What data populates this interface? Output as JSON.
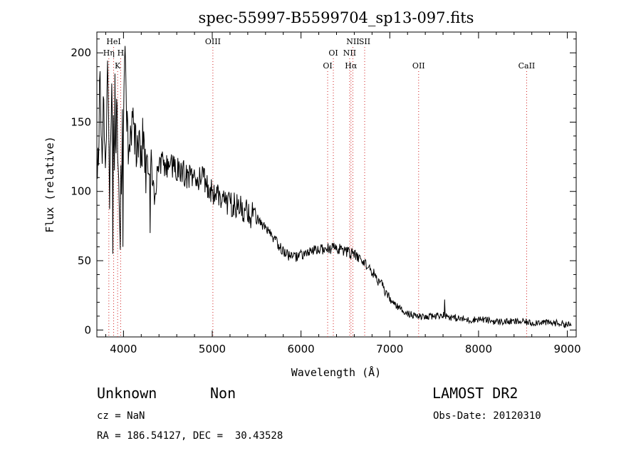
{
  "chart_data": {
    "type": "line",
    "title": "spec-55997-B5599704_sp13-097.fits",
    "xlabel": "Wavelength (Å)",
    "ylabel": "Flux (relative)",
    "xlim": [
      3700,
      9100
    ],
    "ylim": [
      -5,
      215
    ],
    "xticks": [
      4000,
      5000,
      6000,
      7000,
      8000,
      9000
    ],
    "yticks": [
      0,
      50,
      100,
      150,
      200
    ],
    "grid": false,
    "series": [
      {
        "name": "spectrum",
        "anchors": [
          [
            3700,
            120
          ],
          [
            3720,
            140
          ],
          [
            3740,
            175
          ],
          [
            3760,
            130
          ],
          [
            3780,
            165
          ],
          [
            3800,
            110
          ],
          [
            3820,
            195
          ],
          [
            3840,
            90
          ],
          [
            3860,
            150
          ],
          [
            3880,
            185
          ],
          [
            3900,
            95
          ],
          [
            3920,
            160
          ],
          [
            3940,
            120
          ],
          [
            3960,
            70
          ],
          [
            3980,
            130
          ],
          [
            4000,
            150
          ],
          [
            4020,
            195
          ],
          [
            4050,
            120
          ],
          [
            4100,
            145
          ],
          [
            4150,
            125
          ],
          [
            4200,
            140
          ],
          [
            4250,
            115
          ],
          [
            4300,
            130
          ],
          [
            4350,
            95
          ],
          [
            4400,
            125
          ],
          [
            4450,
            118
          ],
          [
            4500,
            120
          ],
          [
            4600,
            115
          ],
          [
            4700,
            112
          ],
          [
            4800,
            110
          ],
          [
            4900,
            108
          ],
          [
            5000,
            100
          ],
          [
            5100,
            95
          ],
          [
            5200,
            92
          ],
          [
            5300,
            88
          ],
          [
            5400,
            85
          ],
          [
            5500,
            80
          ],
          [
            5600,
            73
          ],
          [
            5700,
            65
          ],
          [
            5800,
            57
          ],
          [
            5900,
            52
          ],
          [
            6000,
            54
          ],
          [
            6100,
            56
          ],
          [
            6200,
            58
          ],
          [
            6300,
            59
          ],
          [
            6400,
            59
          ],
          [
            6500,
            57
          ],
          [
            6600,
            54
          ],
          [
            6700,
            50
          ],
          [
            6800,
            42
          ],
          [
            6900,
            33
          ],
          [
            7000,
            22
          ],
          [
            7100,
            16
          ],
          [
            7200,
            12
          ],
          [
            7300,
            10
          ],
          [
            7400,
            9
          ],
          [
            7500,
            10
          ],
          [
            7600,
            11
          ],
          [
            7700,
            9
          ],
          [
            7800,
            8
          ],
          [
            7900,
            7
          ],
          [
            8000,
            8
          ],
          [
            8100,
            7
          ],
          [
            8200,
            6
          ],
          [
            8300,
            6
          ],
          [
            8400,
            6
          ],
          [
            8500,
            6
          ],
          [
            8600,
            5
          ],
          [
            8700,
            6
          ],
          [
            8800,
            5
          ],
          [
            8900,
            5
          ],
          [
            9000,
            4
          ],
          [
            9050,
            3
          ]
        ],
        "spikes": [
          [
            3962,
            58
          ],
          [
            3995,
            60
          ],
          [
            3880,
            55
          ],
          [
            4020,
            205
          ],
          [
            3905,
            185
          ],
          [
            4300,
            70
          ],
          [
            7620,
            22
          ],
          [
            4050,
            150
          ]
        ]
      }
    ],
    "lines": [
      {
        "name": "HeI",
        "wavelength": 3889,
        "row": 1
      },
      {
        "name": "Hη",
        "wavelength": 3835,
        "row": 2
      },
      {
        "name": "H",
        "wavelength": 3968,
        "row": 2
      },
      {
        "name": "K",
        "wavelength": 3934,
        "row": 3
      },
      {
        "name": "OIII",
        "wavelength": 5007,
        "row": 1
      },
      {
        "name": "OI",
        "wavelength": 6364,
        "row": 2
      },
      {
        "name": "OI",
        "wavelength": 6300,
        "row": 3
      },
      {
        "name": "NII",
        "wavelength": 6584,
        "row": 1
      },
      {
        "name": "SII",
        "wavelength": 6717,
        "row": 1
      },
      {
        "name": "NII",
        "wavelength": 6548,
        "row": 2
      },
      {
        "name": "Hα",
        "wavelength": 6563,
        "row": 3
      },
      {
        "name": "OII",
        "wavelength": 7325,
        "row": 3
      },
      {
        "name": "CaII",
        "wavelength": 8542,
        "row": 3
      }
    ]
  },
  "info": {
    "class_label": "Unknown",
    "subclass_label": "Non",
    "survey": "LAMOST DR2",
    "cz": "cz = NaN",
    "obs_date": "Obs-Date: 20120310",
    "coords": "RA = 186.54127, DEC =  30.43528"
  }
}
